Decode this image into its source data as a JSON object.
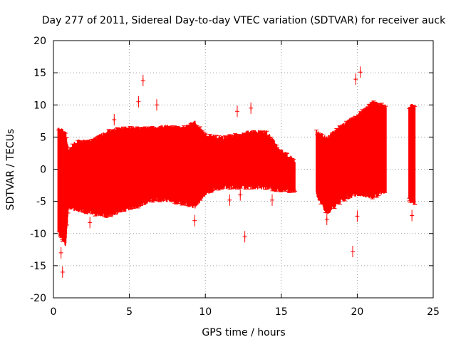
{
  "chart_data": {
    "type": "scatter",
    "title": "Day 277 of 2011, Sidereal Day-to-day VTEC variation (SDTVAR) for receiver auck",
    "xlabel": "GPS time / hours",
    "ylabel": "SDTVAR / TECUs",
    "xlim": [
      0,
      25
    ],
    "ylim": [
      -20,
      20
    ],
    "xticks": [
      0,
      5,
      10,
      15,
      20,
      25
    ],
    "yticks": [
      -20,
      -15,
      -10,
      -5,
      0,
      5,
      10,
      15,
      20
    ],
    "xtick_labels": [
      "0",
      "5",
      "10",
      "15",
      "20",
      "25"
    ],
    "ytick_labels": [
      "-20",
      "-15",
      "-10",
      "-5",
      "0",
      "5",
      "10",
      "15",
      "20"
    ],
    "grid": true,
    "series_color": "#ff0000",
    "marker": "+ with error bars",
    "series": [
      {
        "name": "SDTVAR",
        "envelope": [
          {
            "x": 0.3,
            "low": -10.0,
            "high": 6.5
          },
          {
            "x": 0.8,
            "low": -12.0,
            "high": 6.0
          },
          {
            "x": 1.0,
            "low": -6.0,
            "high": 3.0
          },
          {
            "x": 1.5,
            "low": -6.5,
            "high": 4.5
          },
          {
            "x": 2.5,
            "low": -7.0,
            "high": 4.5
          },
          {
            "x": 3.5,
            "low": -7.5,
            "high": 6.0
          },
          {
            "x": 4.5,
            "low": -6.5,
            "high": 6.5
          },
          {
            "x": 5.5,
            "low": -6.0,
            "high": 6.5
          },
          {
            "x": 6.5,
            "low": -5.0,
            "high": 6.5
          },
          {
            "x": 7.5,
            "low": -5.0,
            "high": 6.8
          },
          {
            "x": 8.5,
            "low": -5.5,
            "high": 6.5
          },
          {
            "x": 9.3,
            "low": -6.0,
            "high": 7.5
          },
          {
            "x": 10.0,
            "low": -4.0,
            "high": 5.5
          },
          {
            "x": 11.0,
            "low": -3.0,
            "high": 5.0
          },
          {
            "x": 12.0,
            "low": -3.0,
            "high": 5.5
          },
          {
            "x": 13.0,
            "low": -3.0,
            "high": 6.0
          },
          {
            "x": 14.0,
            "low": -3.0,
            "high": 6.0
          },
          {
            "x": 15.0,
            "low": -3.5,
            "high": 3.0
          },
          {
            "x": 15.9,
            "low": -3.5,
            "high": 1.5
          },
          {
            "x": 17.3,
            "low": -4.0,
            "high": 6.0
          },
          {
            "x": 18.0,
            "low": -7.0,
            "high": 5.0
          },
          {
            "x": 19.0,
            "low": -5.0,
            "high": 7.0
          },
          {
            "x": 20.0,
            "low": -4.0,
            "high": 8.5
          },
          {
            "x": 21.0,
            "low": -4.5,
            "high": 10.5
          },
          {
            "x": 21.9,
            "low": -3.5,
            "high": 10.0
          },
          {
            "x": 23.4,
            "low": -5.0,
            "high": 10.0
          },
          {
            "x": 23.8,
            "low": -5.5,
            "high": 10.0
          }
        ],
        "outliers": [
          {
            "x": 5.9,
            "y": 13.8
          },
          {
            "x": 5.6,
            "y": 10.5
          },
          {
            "x": 6.8,
            "y": 10.0
          },
          {
            "x": 0.6,
            "y": -16.0
          },
          {
            "x": 0.5,
            "y": -13.0
          },
          {
            "x": 9.3,
            "y": -8.0
          },
          {
            "x": 12.6,
            "y": -10.5
          },
          {
            "x": 12.1,
            "y": 9.0
          },
          {
            "x": 13.0,
            "y": 9.5
          },
          {
            "x": 11.6,
            "y": -4.8
          },
          {
            "x": 12.3,
            "y": -4.0
          },
          {
            "x": 14.4,
            "y": -4.8
          },
          {
            "x": 2.4,
            "y": -8.3
          },
          {
            "x": 19.9,
            "y": 14.0
          },
          {
            "x": 20.2,
            "y": 15.1
          },
          {
            "x": 19.7,
            "y": -12.8
          },
          {
            "x": 20.0,
            "y": -7.3
          },
          {
            "x": 23.6,
            "y": -7.2
          },
          {
            "x": 18.0,
            "y": -7.8
          },
          {
            "x": 4.0,
            "y": 7.7
          }
        ]
      }
    ]
  }
}
